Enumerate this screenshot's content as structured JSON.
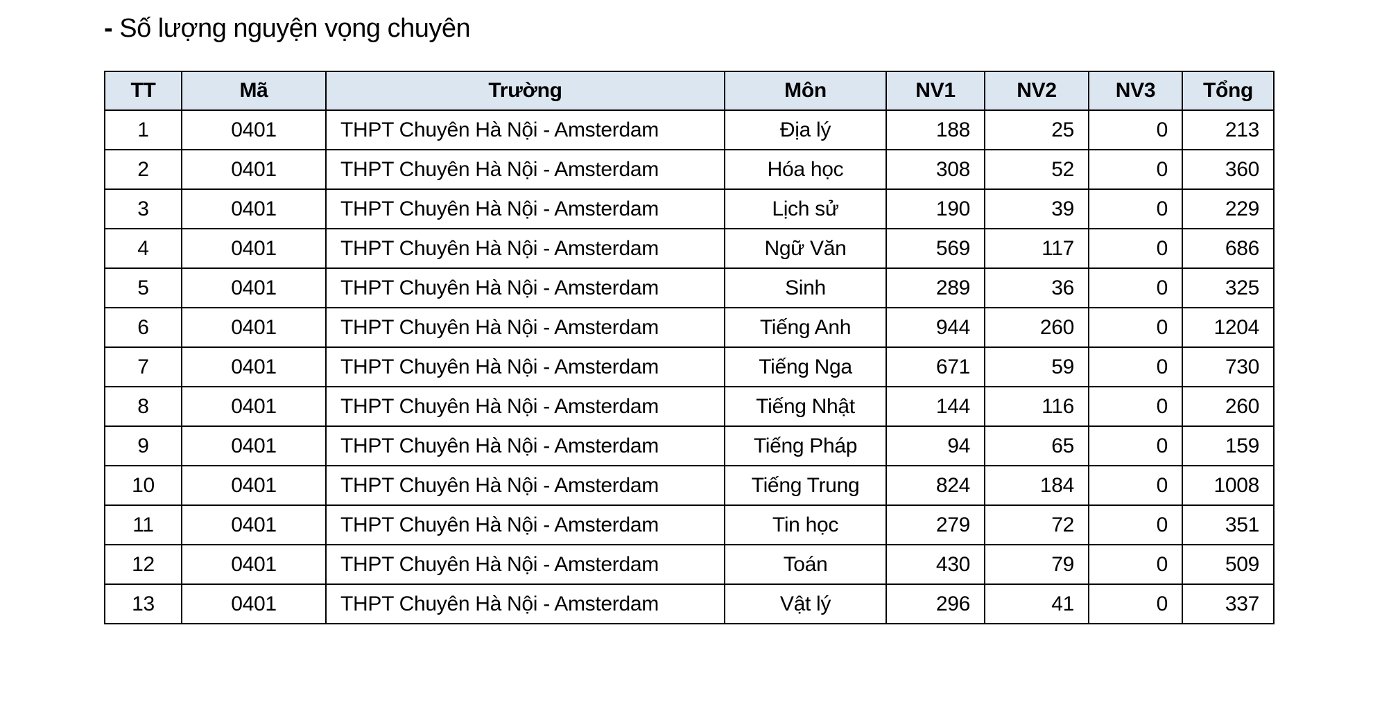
{
  "title": {
    "bullet": "-",
    "text": "Số lượng nguyện vọng chuyên"
  },
  "colors": {
    "header_bg": "#dce6f1",
    "border": "#000000"
  },
  "table": {
    "headers": [
      "TT",
      "Mã",
      "Trường",
      "Môn",
      "NV1",
      "NV2",
      "NV3",
      "Tổng"
    ],
    "rows": [
      [
        "1",
        "0401",
        "THPT Chuyên Hà Nội - Amsterdam",
        "Địa lý",
        "188",
        "25",
        "0",
        "213"
      ],
      [
        "2",
        "0401",
        "THPT Chuyên Hà Nội - Amsterdam",
        "Hóa học",
        "308",
        "52",
        "0",
        "360"
      ],
      [
        "3",
        "0401",
        "THPT Chuyên Hà Nội - Amsterdam",
        "Lịch sử",
        "190",
        "39",
        "0",
        "229"
      ],
      [
        "4",
        "0401",
        "THPT Chuyên Hà Nội - Amsterdam",
        "Ngữ Văn",
        "569",
        "117",
        "0",
        "686"
      ],
      [
        "5",
        "0401",
        "THPT Chuyên Hà Nội - Amsterdam",
        "Sinh",
        "289",
        "36",
        "0",
        "325"
      ],
      [
        "6",
        "0401",
        "THPT Chuyên Hà Nội - Amsterdam",
        "Tiếng Anh",
        "944",
        "260",
        "0",
        "1204"
      ],
      [
        "7",
        "0401",
        "THPT Chuyên Hà Nội - Amsterdam",
        "Tiếng Nga",
        "671",
        "59",
        "0",
        "730"
      ],
      [
        "8",
        "0401",
        "THPT Chuyên Hà Nội - Amsterdam",
        "Tiếng Nhật",
        "144",
        "116",
        "0",
        "260"
      ],
      [
        "9",
        "0401",
        "THPT Chuyên Hà Nội - Amsterdam",
        "Tiếng Pháp",
        "94",
        "65",
        "0",
        "159"
      ],
      [
        "10",
        "0401",
        "THPT Chuyên Hà Nội - Amsterdam",
        "Tiếng Trung",
        "824",
        "184",
        "0",
        "1008"
      ],
      [
        "11",
        "0401",
        "THPT Chuyên Hà Nội - Amsterdam",
        "Tin học",
        "279",
        "72",
        "0",
        "351"
      ],
      [
        "12",
        "0401",
        "THPT Chuyên Hà Nội - Amsterdam",
        "Toán",
        "430",
        "79",
        "0",
        "509"
      ],
      [
        "13",
        "0401",
        "THPT Chuyên Hà Nội - Amsterdam",
        "Vật lý",
        "296",
        "41",
        "0",
        "337"
      ]
    ]
  }
}
